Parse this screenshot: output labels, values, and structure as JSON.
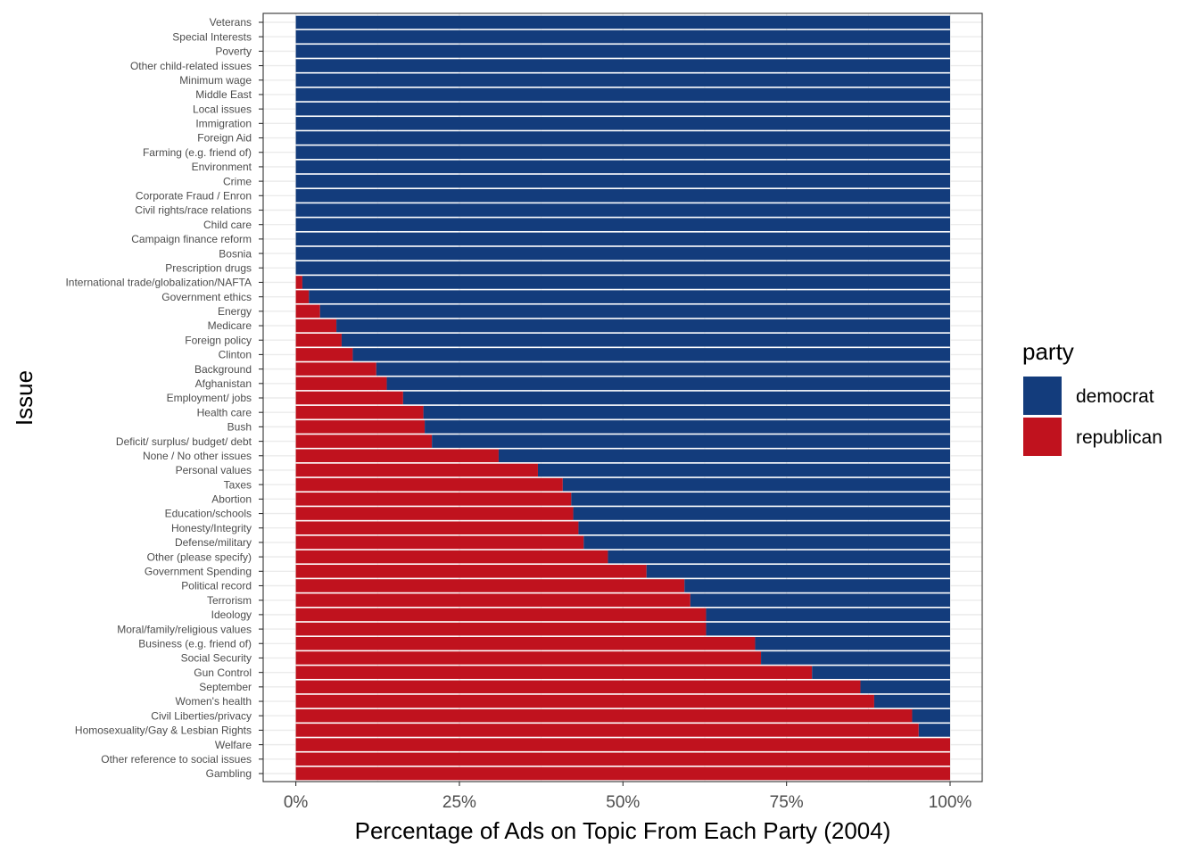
{
  "chart_data": {
    "type": "bar",
    "orientation": "horizontal",
    "stacked": "percent",
    "xlabel": "Percentage of Ads on Topic From Each Party (2004)",
    "ylabel": "Issue",
    "xlim": [
      0,
      100
    ],
    "x_ticks": [
      "0%",
      "25%",
      "50%",
      "75%",
      "100%"
    ],
    "grid": true,
    "legend": {
      "title": "party",
      "position": "right",
      "entries": [
        {
          "label": "democrat",
          "color": "#133C7C"
        },
        {
          "label": "republican",
          "color": "#C0121E"
        }
      ]
    },
    "categories": [
      "Veterans",
      "Special Interests",
      "Poverty",
      "Other child-related issues",
      "Minimum wage",
      "Middle East",
      "Local issues",
      "Immigration",
      "Foreign Aid",
      "Farming (e.g. friend of)",
      "Environment",
      "Crime",
      "Corporate Fraud / Enron",
      "Civil rights/race relations",
      "Child care",
      "Campaign finance reform",
      "Bosnia",
      "Prescription drugs",
      "International trade/globalization/NAFTA",
      "Government ethics",
      "Energy",
      "Medicare",
      "Foreign policy",
      "Clinton",
      "Background",
      "Afghanistan",
      "Employment/ jobs",
      "Health care",
      "Bush",
      "Deficit/ surplus/ budget/ debt",
      "None / No other issues",
      "Personal values",
      "Taxes",
      "Abortion",
      "Education/schools",
      "Honesty/Integrity",
      "Defense/military",
      "Other (please specify)",
      "Government Spending",
      "Political record",
      "Terrorism",
      "Ideology",
      "Moral/family/religious values",
      "Business (e.g. friend of)",
      "Social Security",
      "Gun Control",
      "September",
      "Women's health",
      "Civil Liberties/privacy",
      "Homosexuality/Gay & Lesbian Rights",
      "Welfare",
      "Other reference to social issues",
      "Gambling"
    ],
    "series": [
      {
        "name": "republican",
        "color": "#C0121E",
        "values": [
          0,
          0,
          0,
          0,
          0,
          0,
          0,
          0,
          0,
          0,
          0,
          0,
          0,
          0,
          0,
          0,
          0,
          0,
          1,
          2,
          3.7,
          6.2,
          7,
          8.7,
          12.3,
          13.9,
          16.4,
          19.5,
          19.7,
          20.8,
          31,
          37,
          40.8,
          42.1,
          42.4,
          43.2,
          44,
          47.7,
          53.6,
          59.4,
          60.3,
          62.7,
          62.7,
          70.2,
          71.1,
          78.9,
          86.3,
          88.4,
          94.2,
          95.2,
          100,
          100,
          100
        ]
      },
      {
        "name": "democrat",
        "color": "#133C7C",
        "values": [
          100,
          100,
          100,
          100,
          100,
          100,
          100,
          100,
          100,
          100,
          100,
          100,
          100,
          100,
          100,
          100,
          100,
          100,
          99,
          98,
          96.3,
          93.8,
          93,
          91.3,
          87.7,
          86.1,
          83.6,
          80.5,
          80.3,
          79.2,
          69,
          63,
          59.2,
          57.9,
          57.6,
          56.8,
          56,
          52.3,
          46.4,
          40.6,
          39.7,
          37.3,
          37.3,
          29.8,
          28.9,
          21.1,
          13.7,
          11.6,
          5.8,
          4.8,
          0,
          0,
          0
        ]
      }
    ]
  }
}
